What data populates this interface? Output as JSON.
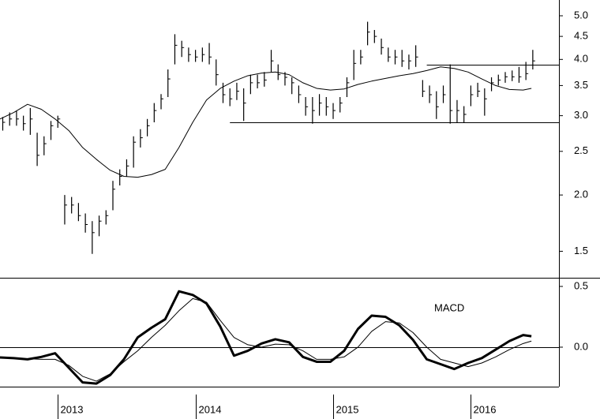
{
  "chart_data": [
    {
      "type": "ohlc",
      "log_scale": true,
      "color": "#000000",
      "xlim": [
        2012.58,
        2016.64
      ],
      "ylim": [
        1.31,
        5.42
      ],
      "yticks": [
        1.5,
        {
          "value": 2,
          "label": "2.0"
        },
        2.5,
        {
          "value": 3,
          "label": "3.0"
        },
        3.5,
        {
          "value": 4,
          "label": "4.0"
        },
        4.5,
        {
          "value": 5,
          "label": "5.0"
        }
      ],
      "x": [
        2012.6,
        2012.65,
        2012.7,
        2012.75,
        2012.8,
        2012.85,
        2012.9,
        2012.95,
        2013.0,
        2013.05,
        2013.1,
        2013.15,
        2013.2,
        2013.25,
        2013.3,
        2013.35,
        2013.4,
        2013.45,
        2013.5,
        2013.55,
        2013.6,
        2013.65,
        2013.7,
        2013.75,
        2013.8,
        2013.85,
        2013.9,
        2013.95,
        2014.0,
        2014.05,
        2014.1,
        2014.15,
        2014.2,
        2014.25,
        2014.3,
        2014.35,
        2014.4,
        2014.45,
        2014.5,
        2014.55,
        2014.6,
        2014.65,
        2014.7,
        2014.75,
        2014.8,
        2014.85,
        2014.9,
        2014.95,
        2015.0,
        2015.05,
        2015.1,
        2015.15,
        2015.2,
        2015.25,
        2015.3,
        2015.35,
        2015.4,
        2015.45,
        2015.5,
        2015.55,
        2015.6,
        2015.65,
        2015.7,
        2015.75,
        2015.8,
        2015.85,
        2015.9,
        2015.95,
        2016.0,
        2016.05,
        2016.1,
        2016.15,
        2016.2,
        2016.25,
        2016.3,
        2016.35,
        2016.4,
        2016.45
      ],
      "high": [
        2.98,
        3.05,
        3.08,
        3.0,
        3.12,
        2.75,
        2.7,
        2.92,
        3.0,
        2.0,
        1.98,
        1.92,
        1.82,
        1.75,
        1.8,
        1.85,
        2.15,
        2.28,
        2.4,
        2.7,
        2.8,
        2.95,
        3.2,
        3.35,
        3.8,
        4.55,
        4.4,
        4.25,
        4.2,
        4.25,
        4.35,
        4.0,
        3.55,
        3.45,
        3.55,
        3.45,
        3.7,
        3.7,
        3.75,
        4.2,
        3.9,
        3.75,
        3.65,
        3.5,
        3.3,
        3.3,
        3.35,
        3.3,
        3.2,
        3.3,
        3.65,
        4.2,
        4.2,
        4.85,
        4.65,
        4.45,
        4.25,
        4.2,
        4.2,
        4.1,
        4.3,
        3.6,
        3.5,
        3.4,
        3.5,
        3.9,
        3.25,
        3.15,
        3.5,
        3.55,
        3.45,
        3.65,
        3.7,
        3.75,
        3.78,
        3.85,
        3.95,
        4.2
      ],
      "low": [
        2.78,
        2.85,
        2.85,
        2.78,
        2.72,
        2.32,
        2.45,
        2.65,
        2.82,
        1.72,
        1.82,
        1.75,
        1.65,
        1.48,
        1.62,
        1.72,
        1.85,
        2.1,
        2.2,
        2.3,
        2.55,
        2.7,
        2.9,
        3.1,
        3.3,
        3.9,
        4.05,
        3.95,
        3.95,
        3.95,
        3.9,
        3.5,
        3.2,
        3.15,
        3.25,
        2.92,
        3.35,
        3.45,
        3.48,
        3.75,
        3.6,
        3.5,
        3.35,
        3.2,
        3.0,
        2.88,
        3.0,
        3.0,
        2.95,
        3.05,
        3.3,
        3.6,
        3.9,
        4.3,
        4.35,
        4.1,
        3.95,
        3.9,
        3.85,
        3.8,
        3.85,
        3.3,
        3.2,
        2.95,
        3.2,
        2.88,
        2.9,
        2.9,
        3.15,
        3.3,
        3.0,
        3.4,
        3.5,
        3.55,
        3.58,
        3.55,
        3.6,
        3.8
      ],
      "close": [
        2.9,
        2.95,
        2.95,
        2.88,
        2.95,
        2.45,
        2.6,
        2.85,
        2.95,
        1.9,
        1.9,
        1.8,
        1.72,
        1.65,
        1.75,
        1.8,
        2.06,
        2.2,
        2.32,
        2.62,
        2.68,
        2.85,
        3.08,
        3.27,
        3.62,
        4.3,
        4.25,
        4.1,
        4.05,
        4.1,
        4.05,
        3.7,
        3.34,
        3.27,
        3.4,
        3.2,
        3.55,
        3.55,
        3.6,
        3.97,
        3.7,
        3.65,
        3.55,
        3.34,
        3.14,
        3.08,
        3.2,
        3.14,
        3.08,
        3.2,
        3.55,
        3.92,
        4.05,
        4.6,
        4.5,
        4.25,
        4.05,
        4.05,
        3.97,
        3.97,
        4.05,
        3.4,
        3.34,
        3.14,
        3.34,
        3.08,
        3.08,
        3.02,
        3.34,
        3.4,
        3.27,
        3.55,
        3.6,
        3.66,
        3.66,
        3.66,
        3.72,
        3.97
      ],
      "lines": [
        {
          "color": "#000000",
          "line_width": 1,
          "x": [
            2012.58,
            2012.68,
            2012.78,
            2012.88,
            2012.98,
            2013.08,
            2013.18,
            2013.28,
            2013.38,
            2013.48,
            2013.58,
            2013.68,
            2013.78,
            2013.88,
            2013.98,
            2014.08,
            2014.18,
            2014.28,
            2014.38,
            2014.48,
            2014.58,
            2014.68,
            2014.78,
            2014.88,
            2014.98,
            2015.08,
            2015.18,
            2015.28,
            2015.38,
            2015.48,
            2015.58,
            2015.68,
            2015.78,
            2015.88,
            2015.98,
            2016.08,
            2016.18,
            2016.28,
            2016.38,
            2016.44
          ],
          "values": [
            2.95,
            3.05,
            3.18,
            3.1,
            2.95,
            2.78,
            2.55,
            2.4,
            2.27,
            2.2,
            2.19,
            2.22,
            2.28,
            2.55,
            2.9,
            3.25,
            3.45,
            3.58,
            3.68,
            3.73,
            3.75,
            3.7,
            3.55,
            3.45,
            3.42,
            3.44,
            3.52,
            3.58,
            3.63,
            3.68,
            3.72,
            3.78,
            3.85,
            3.82,
            3.75,
            3.62,
            3.5,
            3.43,
            3.42,
            3.45
          ]
        }
      ],
      "levels": [
        {
          "value": 2.9,
          "from": 2014.25
        },
        {
          "value": 3.9,
          "from": 2015.68
        }
      ]
    },
    {
      "type": "line",
      "annotation": "MACD",
      "xlim": [
        2012.58,
        2016.64
      ],
      "ylim": [
        -0.325,
        0.565
      ],
      "yticks": [
        0.5,
        {
          "value": 0,
          "label": "0.0"
        }
      ],
      "xticks": [
        2013,
        2014,
        2015,
        2016
      ],
      "levels": [
        {
          "value": 0,
          "from": 2012.58
        }
      ],
      "series": [
        {
          "color": "#000000",
          "line_width": 3,
          "x": [
            2012.58,
            2012.68,
            2012.78,
            2012.88,
            2012.98,
            2013.08,
            2013.18,
            2013.28,
            2013.38,
            2013.48,
            2013.58,
            2013.68,
            2013.78,
            2013.88,
            2013.98,
            2014.08,
            2014.18,
            2014.28,
            2014.38,
            2014.48,
            2014.58,
            2014.68,
            2014.78,
            2014.88,
            2014.98,
            2015.08,
            2015.18,
            2015.28,
            2015.38,
            2015.48,
            2015.58,
            2015.68,
            2015.78,
            2015.88,
            2015.98,
            2016.08,
            2016.18,
            2016.28,
            2016.38,
            2016.44
          ],
          "values": [
            -0.085,
            -0.09,
            -0.1,
            -0.08,
            -0.05,
            -0.17,
            -0.29,
            -0.3,
            -0.23,
            -0.1,
            0.08,
            0.16,
            0.23,
            0.46,
            0.43,
            0.36,
            0.17,
            -0.07,
            -0.03,
            0.03,
            0.065,
            0.04,
            -0.08,
            -0.12,
            -0.12,
            -0.03,
            0.15,
            0.26,
            0.25,
            0.18,
            0.06,
            -0.1,
            -0.14,
            -0.18,
            -0.13,
            -0.09,
            -0.02,
            0.05,
            0.1,
            0.09
          ]
        },
        {
          "color": "#000000",
          "line_width": 1,
          "x": [
            2012.58,
            2012.68,
            2012.78,
            2012.88,
            2012.98,
            2013.08,
            2013.18,
            2013.28,
            2013.38,
            2013.48,
            2013.58,
            2013.68,
            2013.78,
            2013.88,
            2013.98,
            2014.08,
            2014.18,
            2014.28,
            2014.38,
            2014.48,
            2014.58,
            2014.68,
            2014.78,
            2014.88,
            2014.98,
            2015.08,
            2015.18,
            2015.28,
            2015.38,
            2015.48,
            2015.58,
            2015.68,
            2015.78,
            2015.88,
            2015.98,
            2016.08,
            2016.18,
            2016.28,
            2016.38,
            2016.44
          ],
          "values": [
            -0.085,
            -0.09,
            -0.095,
            -0.1,
            -0.1,
            -0.15,
            -0.24,
            -0.28,
            -0.22,
            -0.12,
            -0.03,
            0.08,
            0.18,
            0.3,
            0.4,
            0.37,
            0.22,
            0.08,
            0.02,
            0,
            0.025,
            0.02,
            -0.03,
            -0.1,
            -0.1,
            -0.08,
            0,
            0.13,
            0.21,
            0.2,
            0.12,
            0,
            -0.1,
            -0.13,
            -0.16,
            -0.13,
            -0.08,
            -0.02,
            0.03,
            0.05
          ]
        }
      ]
    }
  ]
}
